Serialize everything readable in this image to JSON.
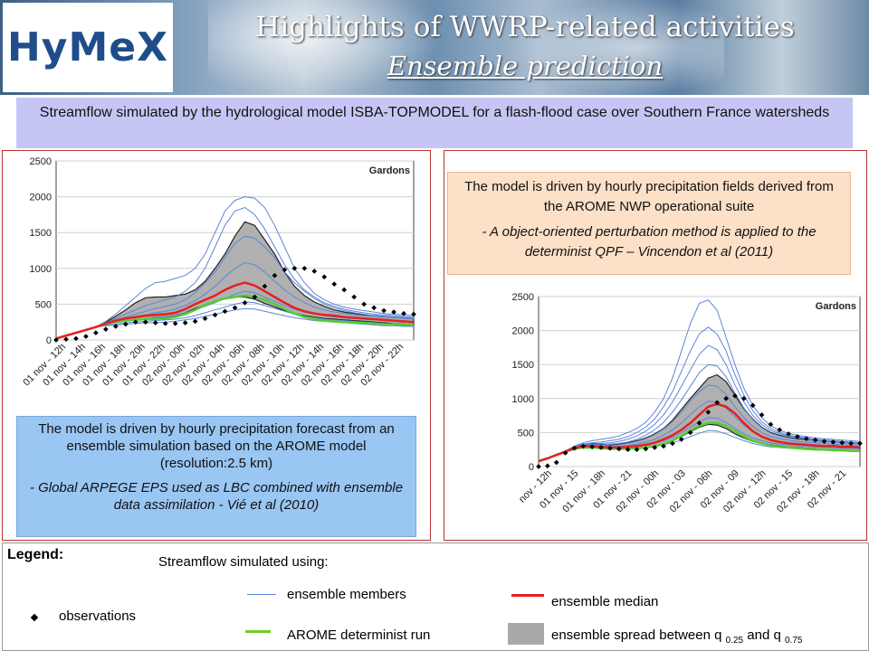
{
  "header": {
    "logo_text": "HyMeX",
    "title": "Highlights of WWRP-related activities",
    "subtitle": "Ensemble prediction"
  },
  "headline": "Streamflow simulated by the hydrological model ISBA-TOPMODEL for a flash-flood case over Southern France watersheds",
  "left_note": {
    "line1": "The model is driven by hourly precipitation forecast from an ensemble simulation based on the AROME model (resolution:2.5 km)",
    "line2": "-  Global ARPEGE EPS used as LBC combined with ensemble data assimilation - Vié et al (2010)"
  },
  "right_note": {
    "line1": "The model is driven by hourly precipitation fields derived from the  AROME NWP operational suite",
    "line2": "- A object-oriented perturbation method is applied to the determinist QPF – Vincendon et al (2011)"
  },
  "legend": {
    "title": "Legend:",
    "subtitle": "Streamflow simulated using:",
    "members": "ensemble members",
    "median": "ensemble median",
    "observations": "observations",
    "determinist": "AROME determinist run",
    "spread_prefix": "ensemble spread between q",
    "spread_q1": "0.25",
    "spread_and": "and q",
    "spread_q2": "0.75"
  },
  "colors": {
    "members": "#5b86d8",
    "median": "#e62020",
    "determinist": "#55cc33",
    "spread": "#b0b0b0",
    "observations": "#000000"
  },
  "chart_data": [
    {
      "type": "line",
      "title": "Gardons",
      "ylim": [
        0,
        2500
      ],
      "yticks": [
        "2500",
        "2000",
        "1500",
        "1000",
        "500",
        "0"
      ],
      "tick_labels": [
        "01 nov - 12h",
        "01 nov - 14h",
        "01 nov - 16h",
        "01 nov - 18h",
        "01 nov - 20h",
        "01 nov - 22h",
        "02 nov - 00h",
        "02 nov - 02h",
        "02 nov - 04h",
        "02 nov - 06h",
        "02 nov - 08h",
        "02 nov - 10h",
        "02 nov - 12h",
        "02 nov - 14h",
        "02 nov - 16h",
        "02 nov - 18h",
        "02 nov - 20h",
        "02 nov - 22h"
      ],
      "x": [
        0,
        1,
        2,
        3,
        4,
        5,
        6,
        7,
        8,
        9,
        10,
        11,
        12,
        13,
        14,
        15,
        16,
        17,
        18,
        19,
        20,
        21,
        22,
        23,
        24,
        25,
        26,
        27,
        28,
        29,
        30,
        31,
        32,
        33,
        34,
        35,
        36
      ],
      "median": [
        20,
        60,
        100,
        140,
        180,
        230,
        270,
        300,
        320,
        340,
        350,
        360,
        380,
        430,
        500,
        560,
        620,
        700,
        760,
        800,
        760,
        680,
        600,
        520,
        450,
        400,
        370,
        350,
        340,
        320,
        310,
        300,
        290,
        280,
        270,
        260,
        250
      ],
      "q25": [
        20,
        60,
        100,
        140,
        180,
        220,
        250,
        270,
        280,
        290,
        300,
        310,
        330,
        380,
        440,
        490,
        540,
        580,
        600,
        600,
        570,
        510,
        460,
        410,
        370,
        340,
        320,
        300,
        290,
        280,
        270,
        260,
        250,
        240,
        230,
        220,
        210
      ],
      "q75": [
        20,
        60,
        100,
        140,
        180,
        250,
        330,
        420,
        520,
        590,
        600,
        600,
        620,
        640,
        700,
        820,
        1000,
        1200,
        1450,
        1650,
        1600,
        1400,
        1200,
        950,
        750,
        620,
        530,
        470,
        420,
        390,
        370,
        350,
        340,
        330,
        320,
        310,
        300
      ],
      "determinist": [
        20,
        60,
        100,
        140,
        180,
        220,
        250,
        270,
        280,
        290,
        290,
        300,
        320,
        360,
        420,
        490,
        540,
        580,
        600,
        620,
        600,
        560,
        500,
        430,
        370,
        320,
        290,
        270,
        260,
        250,
        240,
        240,
        230,
        220,
        220,
        210,
        210
      ],
      "observations": [
        0,
        10,
        20,
        50,
        100,
        150,
        190,
        220,
        250,
        250,
        240,
        230,
        230,
        240,
        260,
        300,
        350,
        400,
        450,
        520,
        600,
        750,
        900,
        980,
        1000,
        1000,
        960,
        880,
        780,
        700,
        600,
        500,
        450,
        410,
        390,
        370,
        360
      ],
      "members": [
        [
          20,
          60,
          100,
          140,
          180,
          260,
          360,
          480,
          600,
          720,
          800,
          820,
          860,
          900,
          1000,
          1200,
          1500,
          1800,
          1950,
          2000,
          1980,
          1850,
          1600,
          1300,
          1000,
          800,
          650,
          560,
          500,
          460,
          430,
          410,
          390,
          370,
          360,
          350,
          340
        ],
        [
          20,
          60,
          100,
          140,
          180,
          240,
          300,
          360,
          420,
          480,
          520,
          560,
          600,
          680,
          800,
          1000,
          1300,
          1600,
          1800,
          1850,
          1750,
          1550,
          1300,
          1050,
          850,
          700,
          600,
          520,
          470,
          430,
          400,
          380,
          360,
          350,
          340,
          330,
          320
        ],
        [
          20,
          60,
          100,
          140,
          180,
          230,
          280,
          320,
          360,
          400,
          440,
          470,
          500,
          560,
          660,
          800,
          950,
          1150,
          1350,
          1450,
          1420,
          1300,
          1150,
          950,
          800,
          680,
          580,
          500,
          450,
          410,
          380,
          360,
          340,
          330,
          320,
          310,
          300
        ],
        [
          20,
          60,
          100,
          140,
          180,
          220,
          260,
          290,
          320,
          350,
          380,
          400,
          430,
          480,
          550,
          640,
          750,
          880,
          1000,
          1080,
          1050,
          950,
          820,
          700,
          600,
          520,
          460,
          420,
          390,
          370,
          350,
          340,
          330,
          320,
          310,
          300,
          290
        ],
        [
          20,
          60,
          100,
          140,
          180,
          210,
          240,
          260,
          280,
          300,
          320,
          330,
          350,
          380,
          420,
          470,
          520,
          580,
          640,
          680,
          660,
          600,
          540,
          480,
          430,
          390,
          360,
          340,
          320,
          310,
          300,
          290,
          280,
          270,
          260,
          250,
          240
        ],
        [
          20,
          60,
          100,
          140,
          180,
          200,
          220,
          240,
          250,
          260,
          270,
          280,
          290,
          310,
          340,
          380,
          420,
          460,
          500,
          530,
          520,
          480,
          440,
          400,
          360,
          330,
          310,
          290,
          280,
          270,
          260,
          250,
          240,
          230,
          220,
          210,
          200
        ],
        [
          20,
          60,
          100,
          140,
          180,
          200,
          210,
          220,
          230,
          240,
          240,
          250,
          260,
          280,
          300,
          330,
          360,
          390,
          420,
          440,
          430,
          400,
          370,
          340,
          310,
          290,
          270,
          260,
          250,
          240,
          230,
          220,
          210,
          200,
          200,
          190,
          190
        ]
      ]
    },
    {
      "type": "line",
      "title": "Gardons",
      "ylim": [
        0,
        2500
      ],
      "yticks": [
        "2500",
        "2000",
        "1500",
        "1000",
        "500",
        "0"
      ],
      "tick_labels": [
        "nov - 12h",
        "01 nov - 15",
        "01 nov - 18h",
        "01 nov - 21",
        "02 nov - 00h",
        "02 nov - 03",
        "02 nov - 06h",
        "02 nov - 09",
        "02 nov - 12h",
        "02 nov - 15",
        "02 nov - 18h",
        "02 nov - 21"
      ],
      "x": [
        0,
        1,
        2,
        3,
        4,
        5,
        6,
        7,
        8,
        9,
        10,
        11,
        12,
        13,
        14,
        15,
        16,
        17,
        18,
        19,
        20,
        21,
        22,
        23,
        24,
        25,
        26,
        27,
        28,
        29,
        30,
        31,
        32,
        33,
        34,
        35,
        36
      ],
      "median": [
        80,
        120,
        170,
        220,
        270,
        300,
        300,
        290,
        280,
        280,
        290,
        300,
        320,
        350,
        400,
        460,
        540,
        640,
        760,
        880,
        920,
        880,
        780,
        640,
        520,
        440,
        390,
        360,
        340,
        330,
        320,
        310,
        300,
        300,
        290,
        290,
        280
      ],
      "q25": [
        80,
        120,
        170,
        220,
        260,
        280,
        280,
        270,
        260,
        260,
        260,
        270,
        280,
        300,
        330,
        380,
        440,
        510,
        580,
        620,
        610,
        560,
        480,
        420,
        370,
        340,
        320,
        300,
        290,
        280,
        270,
        260,
        250,
        250,
        240,
        240,
        230
      ],
      "q75": [
        80,
        120,
        170,
        230,
        290,
        330,
        340,
        330,
        320,
        330,
        350,
        380,
        420,
        480,
        560,
        680,
        840,
        1000,
        1150,
        1300,
        1350,
        1250,
        1050,
        850,
        700,
        580,
        500,
        460,
        430,
        410,
        400,
        390,
        380,
        370,
        360,
        350,
        340
      ],
      "determinist": [
        80,
        120,
        170,
        220,
        260,
        280,
        280,
        270,
        260,
        260,
        260,
        270,
        280,
        300,
        330,
        380,
        450,
        530,
        600,
        640,
        640,
        600,
        520,
        440,
        380,
        340,
        310,
        290,
        280,
        270,
        260,
        250,
        250,
        240,
        240,
        230,
        230
      ],
      "observations": [
        0,
        10,
        60,
        200,
        270,
        300,
        290,
        280,
        270,
        260,
        250,
        250,
        260,
        280,
        300,
        340,
        400,
        500,
        640,
        800,
        940,
        1000,
        1040,
        1000,
        900,
        760,
        620,
        540,
        480,
        440,
        410,
        390,
        370,
        360,
        350,
        340,
        340
      ],
      "members": [
        [
          80,
          120,
          170,
          230,
          300,
          350,
          380,
          400,
          420,
          450,
          500,
          560,
          650,
          800,
          1000,
          1300,
          1700,
          2100,
          2400,
          2450,
          2300,
          1900,
          1500,
          1150,
          900,
          720,
          600,
          530,
          490,
          460,
          440,
          420,
          410,
          400,
          390,
          380,
          370
        ],
        [
          80,
          120,
          170,
          230,
          290,
          330,
          350,
          360,
          380,
          400,
          440,
          500,
          580,
          700,
          880,
          1100,
          1400,
          1700,
          1950,
          2050,
          1950,
          1700,
          1350,
          1050,
          820,
          660,
          560,
          500,
          460,
          440,
          420,
          400,
          390,
          380,
          370,
          360,
          350
        ],
        [
          80,
          120,
          170,
          230,
          290,
          320,
          330,
          340,
          350,
          370,
          400,
          450,
          520,
          620,
          760,
          950,
          1180,
          1420,
          1650,
          1780,
          1720,
          1500,
          1200,
          950,
          750,
          620,
          530,
          480,
          450,
          430,
          410,
          390,
          380,
          370,
          360,
          350,
          340
        ],
        [
          80,
          120,
          170,
          220,
          280,
          310,
          320,
          320,
          330,
          340,
          360,
          400,
          460,
          540,
          650,
          800,
          980,
          1180,
          1380,
          1500,
          1480,
          1320,
          1080,
          860,
          690,
          570,
          490,
          450,
          420,
          400,
          390,
          380,
          370,
          360,
          350,
          340,
          330
        ],
        [
          80,
          120,
          170,
          220,
          270,
          300,
          310,
          310,
          310,
          320,
          340,
          370,
          410,
          470,
          550,
          660,
          800,
          960,
          1100,
          1200,
          1180,
          1060,
          880,
          720,
          590,
          500,
          440,
          410,
          390,
          370,
          360,
          350,
          340,
          330,
          320,
          310,
          300
        ],
        [
          80,
          120,
          170,
          220,
          270,
          290,
          300,
          300,
          300,
          300,
          310,
          330,
          360,
          400,
          460,
          540,
          640,
          760,
          880,
          960,
          950,
          860,
          730,
          610,
          510,
          440,
          400,
          370,
          350,
          340,
          330,
          320,
          310,
          300,
          300,
          290,
          290
        ],
        [
          80,
          120,
          170,
          220,
          260,
          280,
          290,
          290,
          280,
          280,
          290,
          300,
          320,
          340,
          380,
          430,
          500,
          580,
          660,
          720,
          710,
          650,
          560,
          480,
          420,
          380,
          350,
          330,
          320,
          310,
          300,
          290,
          280,
          280,
          270,
          270,
          260
        ],
        [
          80,
          120,
          170,
          220,
          260,
          270,
          270,
          270,
          260,
          260,
          260,
          270,
          280,
          300,
          320,
          350,
          390,
          440,
          490,
          530,
          520,
          480,
          430,
          380,
          340,
          310,
          290,
          280,
          270,
          260,
          250,
          250,
          240,
          240,
          230,
          230,
          220
        ]
      ]
    }
  ]
}
